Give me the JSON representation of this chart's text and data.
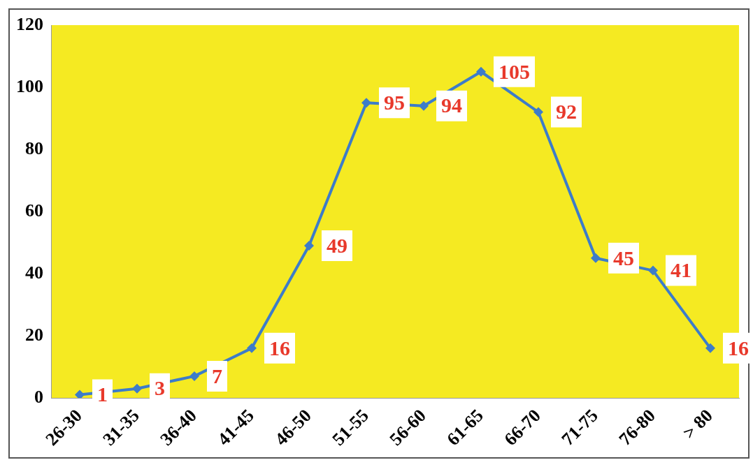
{
  "chart_data": {
    "type": "line",
    "categories": [
      "26-30",
      "31-35",
      "36-40",
      "41-45",
      "46-50",
      "51-55",
      "56-60",
      "61-65",
      "66-70",
      "71-75",
      "76-80",
      "> 80"
    ],
    "series": [
      {
        "color": "#3d7cc9",
        "values": [
          1,
          3,
          7,
          16,
          49,
          95,
          94,
          105,
          92,
          45,
          41,
          16
        ]
      }
    ],
    "ylim": [
      0,
      120
    ],
    "yticks": [
      0,
      20,
      40,
      60,
      80,
      100,
      120
    ],
    "grid": false,
    "legend": false,
    "marker": "diamond",
    "line_style": "solid",
    "data_labels": true
  }
}
